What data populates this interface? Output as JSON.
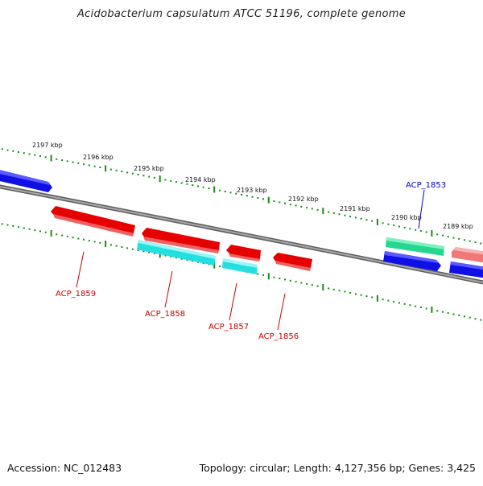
{
  "title": "Acidobacterium capsulatum ATCC 51196, complete genome",
  "footer": {
    "accession": "Accession: NC_012483",
    "topology": "Topology: circular; Length: 4,127,356 bp; Genes: 3,425"
  },
  "colors": {
    "backbone": "#8a8a8a",
    "ticks": "#1a8a1a",
    "forward_gene": "#1010e6",
    "reverse_gene": "#e60000",
    "cyan_gene": "#22e0e0",
    "green_gene": "#22d890",
    "pink_gene": "#f07878",
    "label_red": "#cc0000",
    "label_blue": "#0000cc"
  },
  "scale_labels": [
    "2197 kbp",
    "2196 kbp",
    "2195 kbp",
    "2194 kbp",
    "2193 kbp",
    "2192 kbp",
    "2191 kbp",
    "2190 kbp",
    "2189 kbp"
  ],
  "gene_labels": [
    {
      "text": "ACP_1859",
      "color": "red"
    },
    {
      "text": "ACP_1858",
      "color": "red"
    },
    {
      "text": "ACP_1857",
      "color": "red"
    },
    {
      "text": "ACP_1856",
      "color": "red"
    },
    {
      "text": "ACP_1853",
      "color": "blue"
    }
  ]
}
